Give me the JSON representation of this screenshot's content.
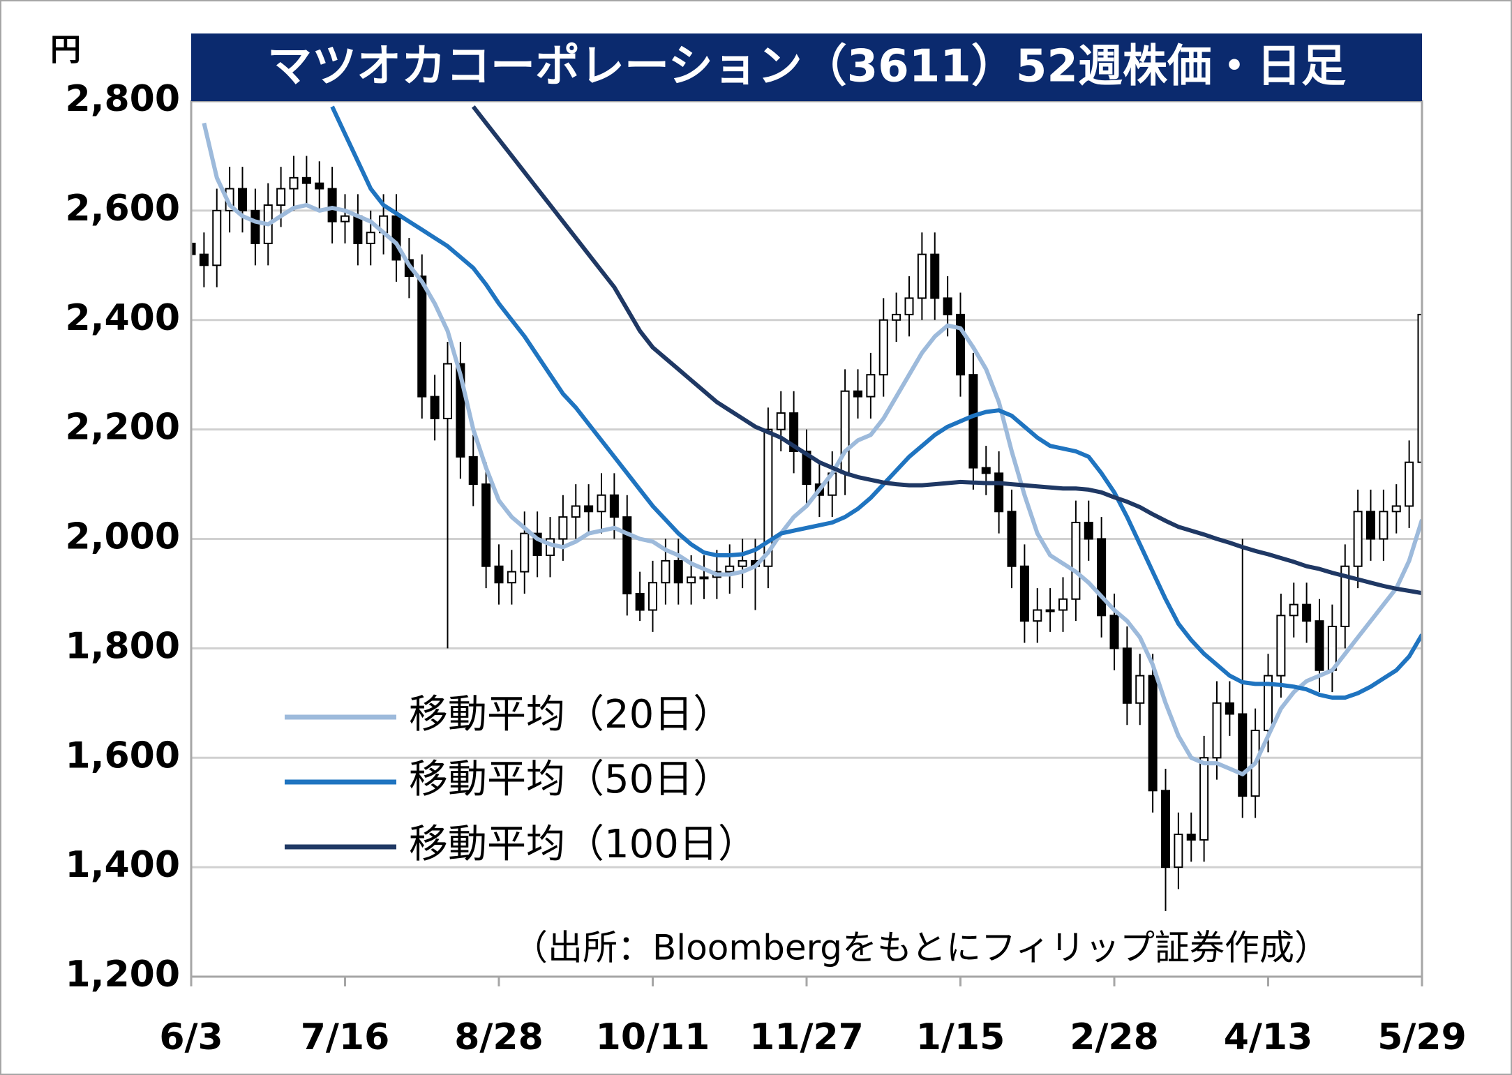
{
  "chart_data": {
    "type": "candlestick",
    "title": "マツオカコーポレーション（3611）52週株価・日足",
    "y_unit": "円",
    "source": "（出所：Bloombergをもとにフィリップ証券作成）",
    "categories": [
      "6/3",
      null,
      null,
      null,
      null,
      null,
      null,
      null,
      null,
      null,
      null,
      null,
      "7/16",
      null,
      null,
      null,
      null,
      null,
      null,
      null,
      null,
      null,
      null,
      null,
      "8/28",
      null,
      null,
      null,
      null,
      null,
      null,
      null,
      null,
      null,
      null,
      null,
      "10/11",
      null,
      null,
      null,
      null,
      null,
      null,
      null,
      null,
      null,
      null,
      null,
      "11/27",
      null,
      null,
      null,
      null,
      null,
      null,
      null,
      null,
      null,
      null,
      null,
      "1/15",
      null,
      null,
      null,
      null,
      null,
      null,
      null,
      null,
      null,
      null,
      null,
      "2/28",
      null,
      null,
      null,
      null,
      null,
      null,
      null,
      null,
      null,
      null,
      null,
      "4/13",
      null,
      null,
      null,
      null,
      null,
      null,
      null,
      null,
      null,
      null,
      null,
      "5/29"
    ],
    "open": [
      2540,
      2520,
      2500,
      2600,
      2640,
      2600,
      2540,
      2610,
      2640,
      2660,
      2650,
      2640,
      2580,
      2590,
      2540,
      2560,
      2590,
      2510,
      2480,
      2260,
      2220,
      2320,
      2150,
      2100,
      1950,
      1920,
      1940,
      2010,
      1970,
      2000,
      2040,
      2060,
      2050,
      2080,
      2040,
      1900,
      1870,
      1920,
      1960,
      1920,
      1930,
      1930,
      1940,
      1950,
      1960,
      1950,
      2200,
      2230,
      2160,
      2100,
      2080,
      2120,
      2270,
      2260,
      2300,
      2400,
      2410,
      2440,
      2520,
      2440,
      2410,
      2300,
      2130,
      2120,
      2050,
      1950,
      1850,
      1870,
      1870,
      1890,
      2030,
      2000,
      1860,
      1800,
      1700,
      1750,
      1540,
      1400,
      1460,
      1450,
      1600,
      1700,
      1680,
      1530,
      1650,
      1750,
      1860,
      1880,
      1850,
      1760,
      1840,
      1950,
      2050,
      2000,
      2050,
      2060,
      2140
    ],
    "high": [
      2580,
      2560,
      2640,
      2680,
      2680,
      2640,
      2650,
      2680,
      2700,
      2700,
      2690,
      2680,
      2630,
      2630,
      2600,
      2630,
      2630,
      2550,
      2520,
      2300,
      2360,
      2360,
      2190,
      2140,
      1990,
      1980,
      2050,
      2050,
      2040,
      2080,
      2100,
      2100,
      2120,
      2120,
      2080,
      1940,
      1960,
      2000,
      2000,
      1970,
      1970,
      1980,
      1990,
      2000,
      2000,
      2240,
      2270,
      2270,
      2200,
      2140,
      2160,
      2310,
      2310,
      2340,
      2440,
      2450,
      2480,
      2560,
      2560,
      2480,
      2450,
      2340,
      2170,
      2160,
      2090,
      1990,
      1910,
      1910,
      1930,
      2070,
      2070,
      2040,
      1900,
      1840,
      1790,
      1790,
      1580,
      1500,
      1500,
      1640,
      1740,
      1740,
      2000,
      1690,
      1790,
      1900,
      1920,
      1920,
      1890,
      1880,
      1990,
      2090,
      2090,
      2090,
      2100,
      2180,
      2420
    ],
    "low": [
      2480,
      2460,
      2460,
      2560,
      2560,
      2500,
      2500,
      2570,
      2600,
      2610,
      2600,
      2540,
      2540,
      2500,
      2500,
      2520,
      2470,
      2440,
      2220,
      2180,
      1800,
      2110,
      2060,
      1910,
      1880,
      1880,
      1900,
      1930,
      1930,
      1960,
      2000,
      2010,
      2010,
      2000,
      1860,
      1850,
      1830,
      1880,
      1880,
      1880,
      1890,
      1890,
      1900,
      1910,
      1870,
      1910,
      2160,
      2120,
      2060,
      2040,
      2040,
      2080,
      2220,
      2220,
      2260,
      2360,
      2370,
      2400,
      2400,
      2370,
      2260,
      2090,
      2080,
      2010,
      1910,
      1810,
      1810,
      1830,
      1830,
      1850,
      1960,
      1820,
      1760,
      1660,
      1660,
      1500,
      1320,
      1360,
      1410,
      1410,
      1560,
      1640,
      1490,
      1490,
      1610,
      1710,
      1820,
      1810,
      1720,
      1720,
      1800,
      1910,
      1960,
      1960,
      2010,
      2020,
      2100
    ],
    "close": [
      2520,
      2500,
      2600,
      2640,
      2600,
      2540,
      2610,
      2640,
      2660,
      2650,
      2640,
      2580,
      2590,
      2540,
      2560,
      2590,
      2510,
      2480,
      2260,
      2220,
      2320,
      2150,
      2100,
      1950,
      1920,
      1940,
      2010,
      1970,
      2000,
      2040,
      2060,
      2050,
      2080,
      2040,
      1900,
      1870,
      1920,
      1960,
      1920,
      1930,
      1930,
      1940,
      1950,
      1960,
      1950,
      2200,
      2230,
      2160,
      2100,
      2080,
      2120,
      2270,
      2260,
      2300,
      2400,
      2410,
      2440,
      2520,
      2440,
      2410,
      2300,
      2130,
      2120,
      2050,
      1950,
      1850,
      1870,
      1870,
      1890,
      2030,
      2000,
      1860,
      1800,
      1700,
      1750,
      1540,
      1400,
      1460,
      1450,
      1600,
      1700,
      1680,
      1530,
      1650,
      1750,
      1860,
      1880,
      1850,
      1760,
      1840,
      1950,
      2050,
      2000,
      2050,
      2060,
      2140,
      2410
    ],
    "up_color": "#ffffff",
    "down_color": "#000000",
    "series": [
      {
        "name": "移動平均（20日）",
        "color": "#9dbadb",
        "values": [
          null,
          2760,
          2660,
          2610,
          2590,
          2580,
          2575,
          2590,
          2605,
          2610,
          2600,
          2605,
          2600,
          2590,
          2580,
          2560,
          2540,
          2500,
          2470,
          2430,
          2380,
          2300,
          2200,
          2130,
          2070,
          2040,
          2020,
          2000,
          1990,
          1985,
          1995,
          2010,
          2015,
          2020,
          2010,
          2000,
          1995,
          1980,
          1970,
          1955,
          1945,
          1935,
          1935,
          1940,
          1950,
          1975,
          2010,
          2040,
          2060,
          2090,
          2120,
          2160,
          2180,
          2190,
          2220,
          2260,
          2300,
          2340,
          2370,
          2390,
          2385,
          2350,
          2310,
          2250,
          2160,
          2080,
          2010,
          1970,
          1955,
          1940,
          1920,
          1895,
          1870,
          1850,
          1820,
          1770,
          1700,
          1640,
          1600,
          1590,
          1590,
          1580,
          1570,
          1590,
          1640,
          1690,
          1720,
          1740,
          1750,
          1760,
          1790,
          1820,
          1850,
          1880,
          1910,
          1960,
          2035
        ]
      },
      {
        "name": "移動平均（50日）",
        "color": "#1f74c0",
        "values": [
          null,
          null,
          null,
          null,
          null,
          null,
          null,
          null,
          null,
          null,
          null,
          2790,
          2740,
          2690,
          2640,
          2610,
          2595,
          2580,
          2565,
          2550,
          2535,
          2515,
          2495,
          2465,
          2430,
          2400,
          2370,
          2335,
          2300,
          2265,
          2240,
          2210,
          2180,
          2150,
          2120,
          2090,
          2060,
          2035,
          2010,
          1990,
          1975,
          1970,
          1970,
          1972,
          1980,
          1995,
          2010,
          2015,
          2020,
          2025,
          2030,
          2040,
          2055,
          2075,
          2100,
          2125,
          2150,
          2170,
          2190,
          2205,
          2215,
          2225,
          2232,
          2235,
          2225,
          2205,
          2185,
          2170,
          2165,
          2160,
          2150,
          2120,
          2085,
          2040,
          1990,
          1940,
          1890,
          1845,
          1815,
          1790,
          1770,
          1750,
          1738,
          1735,
          1735,
          1733,
          1730,
          1725,
          1715,
          1710,
          1710,
          1718,
          1730,
          1745,
          1760,
          1785,
          1825
        ]
      },
      {
        "name": "移動平均（100日）",
        "color": "#1f3864",
        "values": [
          null,
          null,
          null,
          null,
          null,
          null,
          null,
          null,
          null,
          null,
          null,
          null,
          null,
          null,
          null,
          null,
          null,
          null,
          null,
          null,
          null,
          null,
          2790,
          2760,
          2730,
          2700,
          2670,
          2640,
          2610,
          2580,
          2550,
          2520,
          2490,
          2460,
          2420,
          2380,
          2350,
          2330,
          2310,
          2290,
          2270,
          2250,
          2235,
          2220,
          2205,
          2195,
          2185,
          2170,
          2155,
          2140,
          2130,
          2120,
          2113,
          2108,
          2103,
          2100,
          2098,
          2098,
          2100,
          2102,
          2104,
          2103,
          2102,
          2102,
          2100,
          2098,
          2096,
          2094,
          2092,
          2092,
          2090,
          2085,
          2076,
          2068,
          2058,
          2045,
          2033,
          2022,
          2015,
          2008,
          2000,
          1993,
          1985,
          1978,
          1972,
          1965,
          1958,
          1950,
          1945,
          1938,
          1932,
          1926,
          1920,
          1914,
          1909,
          1905,
          1901
        ]
      }
    ],
    "ylim": [
      1200,
      2800
    ],
    "yticks": [
      {
        "value": 1200,
        "label": "1,200"
      },
      {
        "value": 1400,
        "label": "1,400"
      },
      {
        "value": 1600,
        "label": "1,600"
      },
      {
        "value": 1800,
        "label": "1,800"
      },
      {
        "value": 2000,
        "label": "2,000"
      },
      {
        "value": 2200,
        "label": "2,200"
      },
      {
        "value": 2400,
        "label": "2,400"
      },
      {
        "value": 2600,
        "label": "2,600"
      },
      {
        "value": 2800,
        "label": "2,800"
      }
    ],
    "grid": true,
    "legend": "left"
  }
}
